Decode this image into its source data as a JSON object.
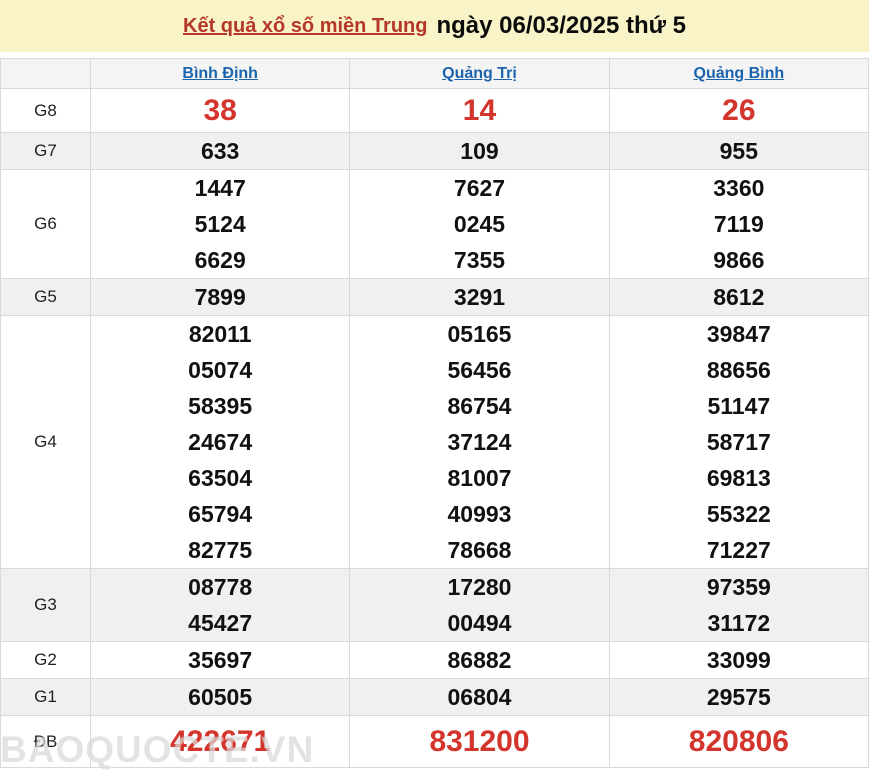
{
  "title": {
    "link_label": "Kết quả xổ số miền Trung",
    "date_text": "ngày 06/03/2025 thứ 5"
  },
  "table": {
    "columns": [
      "Bình Định",
      "Quảng Trị",
      "Quảng Bình"
    ],
    "rows": [
      {
        "label": "G8",
        "highlight": true,
        "values": [
          [
            "38"
          ],
          [
            "14"
          ],
          [
            "26"
          ]
        ]
      },
      {
        "label": "G7",
        "highlight": false,
        "values": [
          [
            "633"
          ],
          [
            "109"
          ],
          [
            "955"
          ]
        ]
      },
      {
        "label": "G6",
        "highlight": false,
        "values": [
          [
            "1447",
            "5124",
            "6629"
          ],
          [
            "7627",
            "0245",
            "7355"
          ],
          [
            "3360",
            "7119",
            "9866"
          ]
        ]
      },
      {
        "label": "G5",
        "highlight": false,
        "values": [
          [
            "7899"
          ],
          [
            "3291"
          ],
          [
            "8612"
          ]
        ]
      },
      {
        "label": "G4",
        "highlight": false,
        "values": [
          [
            "82011",
            "05074",
            "58395",
            "24674",
            "63504",
            "65794",
            "82775"
          ],
          [
            "05165",
            "56456",
            "86754",
            "37124",
            "81007",
            "40993",
            "78668"
          ],
          [
            "39847",
            "88656",
            "51147",
            "58717",
            "69813",
            "55322",
            "71227"
          ]
        ]
      },
      {
        "label": "G3",
        "highlight": false,
        "values": [
          [
            "08778",
            "45427"
          ],
          [
            "17280",
            "00494"
          ],
          [
            "97359",
            "31172"
          ]
        ]
      },
      {
        "label": "G2",
        "highlight": false,
        "values": [
          [
            "35697"
          ],
          [
            "86882"
          ],
          [
            "33099"
          ]
        ]
      },
      {
        "label": "G1",
        "highlight": false,
        "values": [
          [
            "60505"
          ],
          [
            "06804"
          ],
          [
            "29575"
          ]
        ]
      },
      {
        "label": "ĐB",
        "highlight": true,
        "values": [
          [
            "422671"
          ],
          [
            "831200"
          ],
          [
            "820806"
          ]
        ]
      }
    ]
  },
  "watermark": "BAOQUOCTE.VN",
  "colors": {
    "title_bar_bg": "#f9f3c8",
    "title_red": "#b4372a",
    "link_blue": "#1c63ad",
    "number_red": "#d3342c",
    "shaded_row": "#f0f0f0"
  }
}
